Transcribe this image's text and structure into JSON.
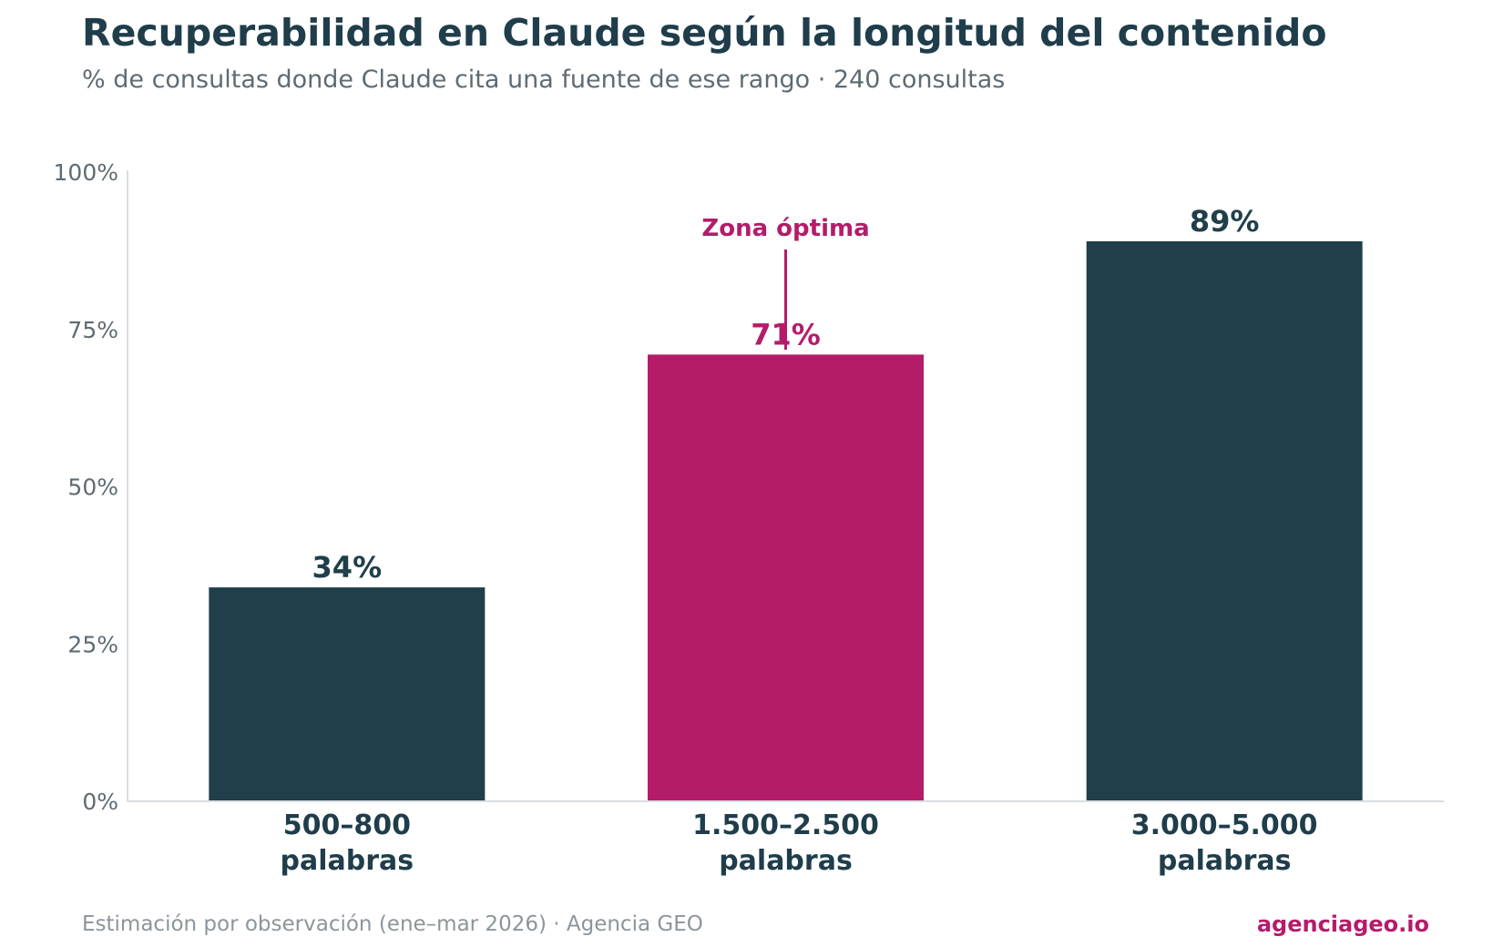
{
  "title": "Recuperabilidad en Claude según la longitud del contenido",
  "subtitle": "% de consultas donde Claude cita una fuente de ese rango · 240 consultas",
  "footer": {
    "source": "Estimación por observación (ene–mar 2026) · Agencia GEO",
    "brand": "agenciageo.io"
  },
  "colors": {
    "default_bar": "#203f4b",
    "highlight": "#b41c6a",
    "text_dark": "#1f3d4a",
    "axis_text": "#5f6b73",
    "axis_line": "#d9dde0"
  },
  "chart_data": {
    "type": "bar",
    "categories": [
      [
        "500–800",
        "palabras"
      ],
      [
        "1.500–2.500",
        "palabras"
      ],
      [
        "3.000–5.000",
        "palabras"
      ]
    ],
    "values": [
      34,
      71,
      89
    ],
    "value_labels": [
      "34%",
      "71%",
      "89%"
    ],
    "highlight_index": 1,
    "ylim": [
      0,
      100
    ],
    "yticks": [
      0,
      25,
      50,
      75,
      100
    ],
    "ytick_labels": [
      "0%",
      "25%",
      "50%",
      "75%",
      "100%"
    ],
    "grid": false,
    "annotation": {
      "text": "Zona óptima",
      "category_index": 1
    }
  }
}
